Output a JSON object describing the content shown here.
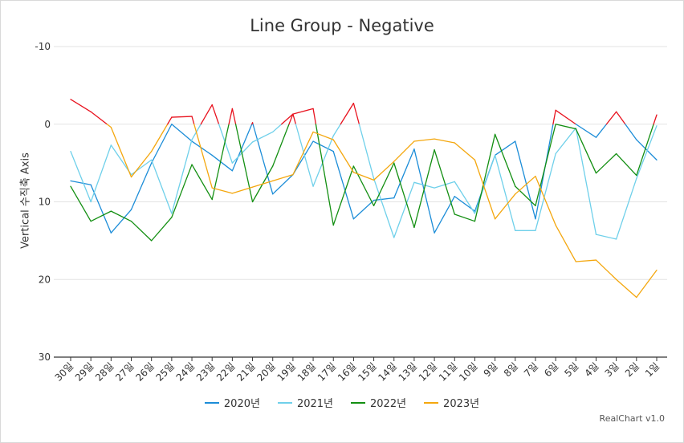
{
  "chart_data": {
    "type": "line",
    "title": "Line Group - Negative",
    "ylabel": "Vertical 수직축 Axis",
    "xlabel": "",
    "ylim": [
      -10,
      30
    ],
    "y_reversed": true,
    "yticks": [
      -10,
      0,
      10,
      20,
      30
    ],
    "categories": [
      "30일",
      "29일",
      "28일",
      "27일",
      "26일",
      "25일",
      "24일",
      "23일",
      "22일",
      "21일",
      "20일",
      "19일",
      "18일",
      "17일",
      "16일",
      "15일",
      "14일",
      "13일",
      "12일",
      "11일",
      "10일",
      "9일",
      "8일",
      "7일",
      "6일",
      "5일",
      "4일",
      "3일",
      "2일",
      "1일"
    ],
    "negative_color": "#e8121e",
    "grid": true,
    "legend_position": "bottom",
    "series": [
      {
        "name": "2020년",
        "color": "#1c8dd8",
        "values": [
          7.3,
          7.8,
          14,
          11,
          5,
          0,
          2.2,
          4,
          6,
          -0.2,
          9,
          6.5,
          2.2,
          3.5,
          12.2,
          9.8,
          9.5,
          3.2,
          14,
          9.3,
          11.2,
          4,
          2.2,
          12.2,
          -1.8,
          0,
          1.7,
          -1.6,
          2,
          4.6
        ]
      },
      {
        "name": "2021년",
        "color": "#6fd0ea",
        "values": [
          3.5,
          10,
          2.7,
          6.5,
          4.6,
          11.5,
          2,
          -2.5,
          5,
          2.3,
          1,
          -1.3,
          8,
          1.5,
          -2.7,
          7,
          14.6,
          7.5,
          8.2,
          7.4,
          11.5,
          4,
          13.7,
          13.7,
          3.8,
          0.5,
          14.2,
          14.8,
          7,
          0.2
        ]
      },
      {
        "name": "2022년",
        "color": "#138f12",
        "values": [
          8,
          12.5,
          11.2,
          12.5,
          15,
          12,
          5.2,
          9.7,
          -2,
          10,
          5.4,
          -1.3,
          -2,
          13,
          5.4,
          10.5,
          5,
          13.3,
          3.3,
          11.6,
          12.5,
          1.3,
          8,
          10.5,
          0,
          0.6,
          6.3,
          3.8,
          6.6,
          -1.2
        ]
      },
      {
        "name": "2023년",
        "color": "#f4a70e",
        "values": [
          -3.2,
          -1.6,
          0.4,
          6.8,
          3.5,
          -0.9,
          -1,
          8.2,
          8.9,
          8.1,
          7.3,
          6.5,
          1,
          2,
          6.2,
          7.2,
          4.8,
          2.2,
          1.9,
          2.4,
          4.6,
          12.2,
          9,
          6.7,
          13,
          17.7,
          17.5,
          20,
          22.3,
          18.8
        ]
      }
    ]
  },
  "footer": {
    "credits": "RealChart v1.0"
  }
}
